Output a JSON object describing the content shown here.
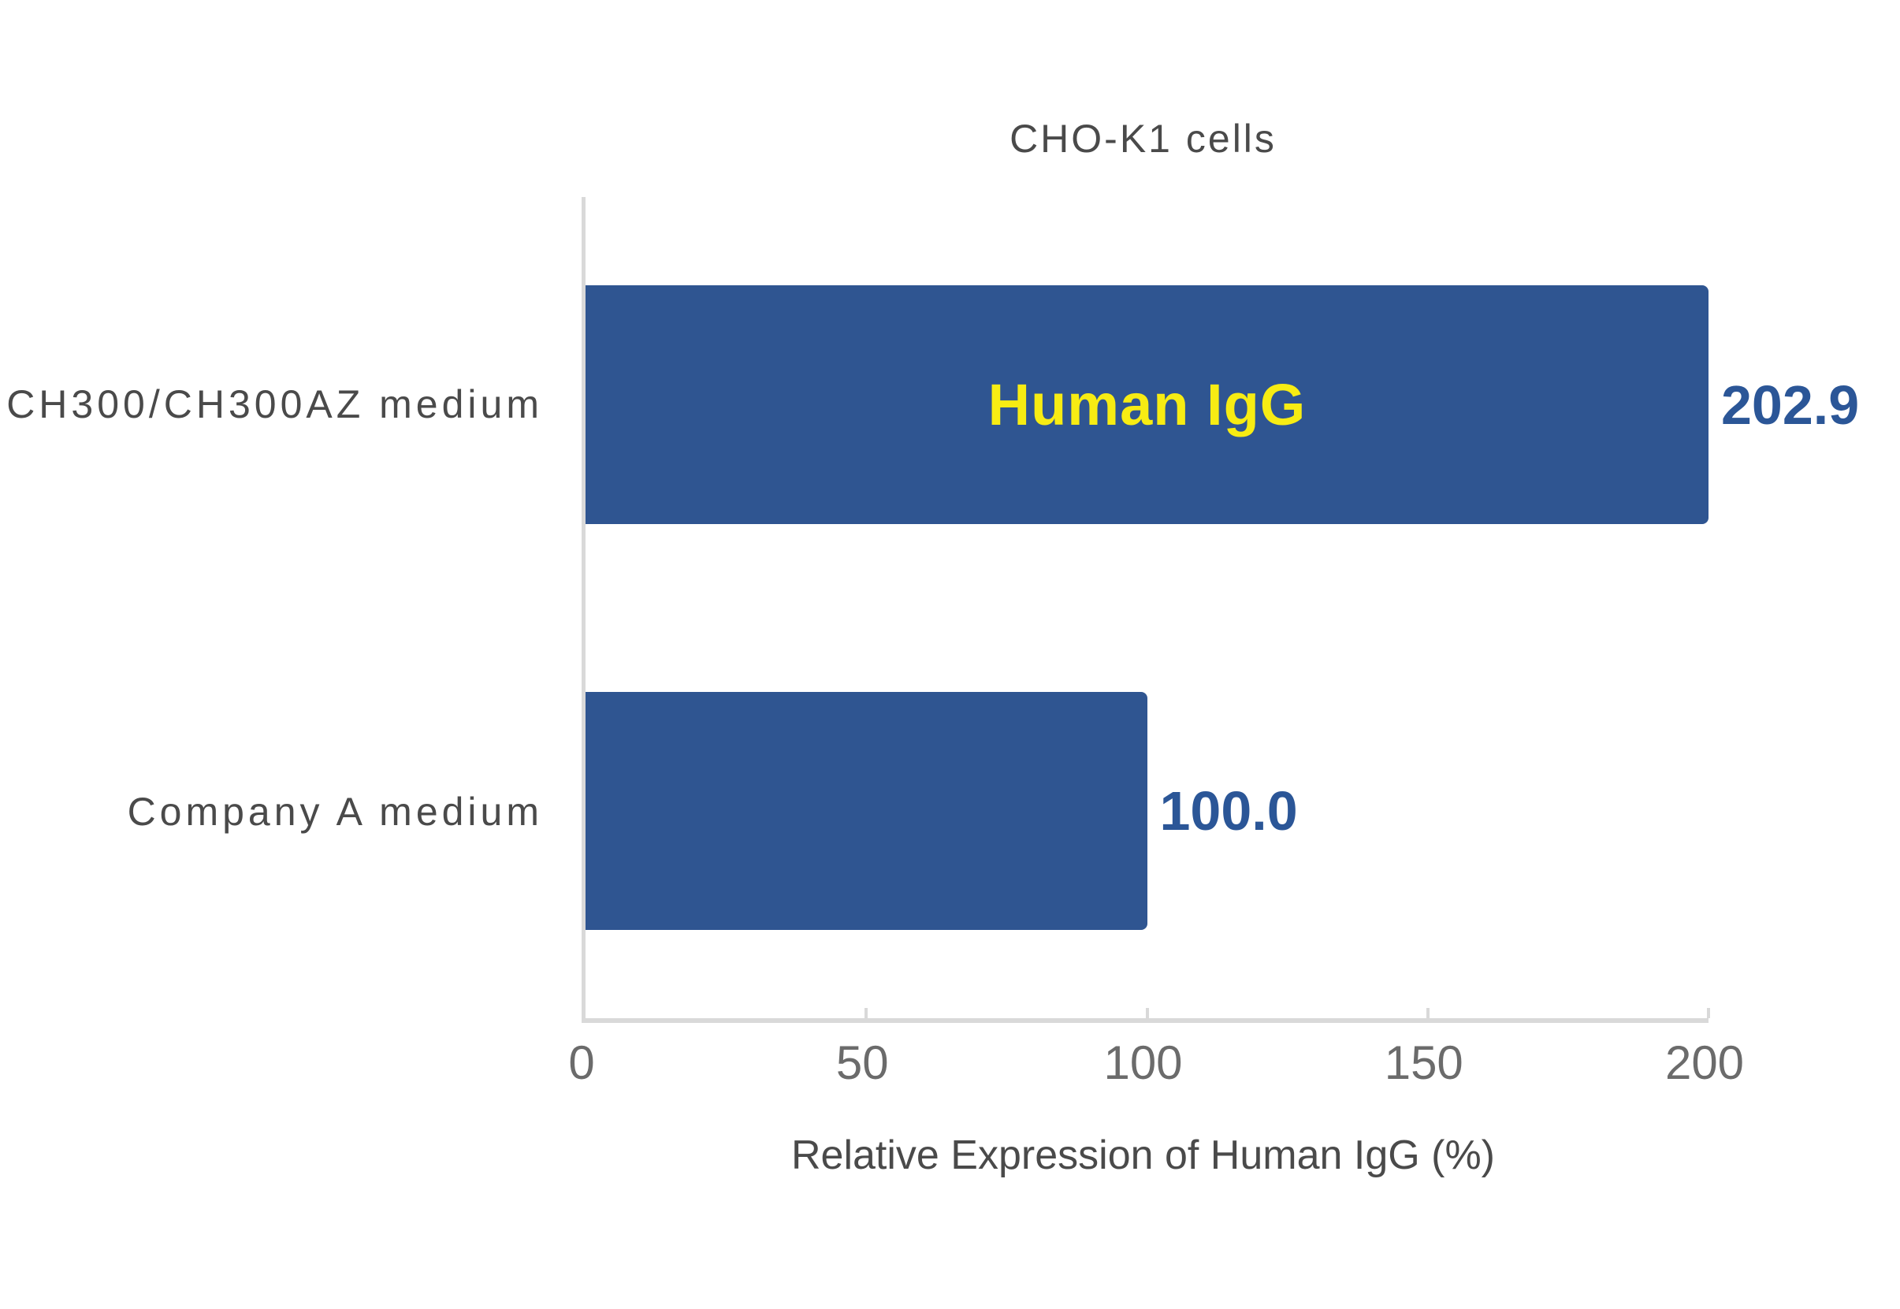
{
  "chart_data": {
    "type": "bar",
    "orientation": "horizontal",
    "title": "CHO-K1 cells",
    "categories": [
      "CH300/CH300AZ medium",
      "Company A medium"
    ],
    "values": [
      202.9,
      100.0
    ],
    "value_labels": [
      "202.9",
      "100.0"
    ],
    "bar_annotations": [
      "Human IgG",
      ""
    ],
    "xlabel": "Relative Expression of Human IgG (%)",
    "xlim": [
      0,
      200
    ],
    "xticks": [
      0,
      50,
      100,
      150,
      200
    ],
    "xtick_labels": [
      "0",
      "50",
      "100",
      "150",
      "200"
    ],
    "grid": false,
    "legend": false,
    "colors": {
      "bar": "#2F5591",
      "value_label": "#2B5697",
      "annotation_text": "#F7EC13",
      "axis_line": "#D9D9D9",
      "text": "#4A4A4A",
      "tick_label": "#6B6B6B",
      "background": "#FFFFFF"
    }
  }
}
